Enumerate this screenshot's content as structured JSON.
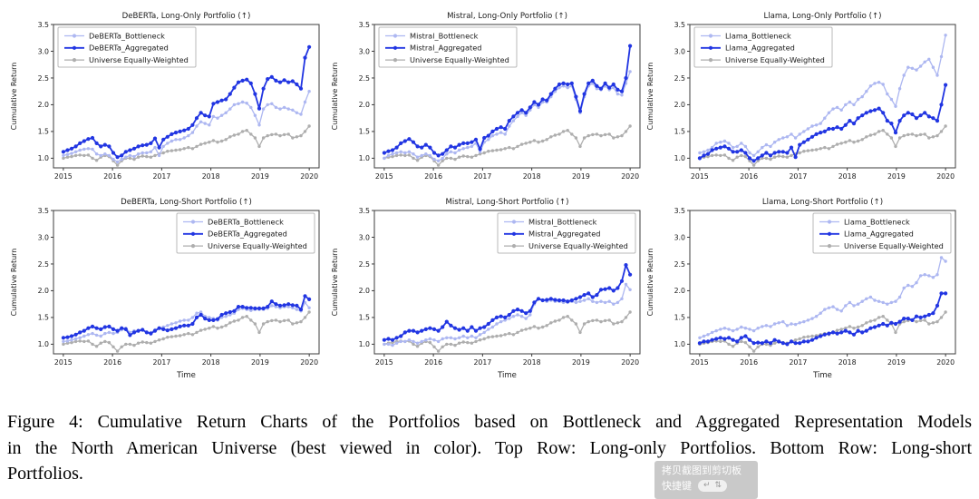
{
  "colors": {
    "bottleneck": "#adb7f1",
    "aggregated": "#2135e2",
    "universe": "#aeaeae",
    "frame": "#3c3c3c",
    "text": "#1a1a1a",
    "legend_border": "#b9b9b9"
  },
  "axes": {
    "ylabel": "Cumulative Return",
    "xlabel_bottom": "Time",
    "yticks": [
      1.0,
      1.5,
      2.0,
      2.5,
      3.0,
      3.5
    ],
    "xticks": [
      2015,
      2016,
      2017,
      2018,
      2019,
      2020
    ],
    "ylim": [
      0.82,
      3.5
    ],
    "xlim": [
      2014.8,
      2020.2
    ],
    "x_start": 2015,
    "x_end": 2020
  },
  "shared_series": {
    "universe_equally_weighted": [
      1.0,
      1.02,
      1.03,
      1.05,
      1.06,
      1.05,
      1.06,
      1.0,
      0.96,
      1.02,
      1.05,
      1.03,
      0.95,
      0.87,
      0.95,
      1.0,
      1.0,
      0.98,
      1.02,
      1.04,
      1.03,
      1.02,
      1.05,
      1.08,
      1.1,
      1.13,
      1.14,
      1.15,
      1.16,
      1.18,
      1.2,
      1.18,
      1.22,
      1.26,
      1.28,
      1.3,
      1.33,
      1.3,
      1.32,
      1.35,
      1.4,
      1.43,
      1.45,
      1.5,
      1.52,
      1.45,
      1.38,
      1.22,
      1.38,
      1.42,
      1.44,
      1.45,
      1.42,
      1.44,
      1.45,
      1.38,
      1.4,
      1.42,
      1.5,
      1.6
    ]
  },
  "chart_data": [
    {
      "type": "line",
      "title": "DeBERTa, Long-Only Portfolio (↑)",
      "legend_loc": "upper-left",
      "show_xlabel": false,
      "series": [
        {
          "name": "DeBERTa_Bottleneck",
          "color_key": "bottleneck",
          "values": [
            1.05,
            1.07,
            1.09,
            1.12,
            1.15,
            1.17,
            1.18,
            1.17,
            1.08,
            1.05,
            1.08,
            1.05,
            0.98,
            0.93,
            0.98,
            1.02,
            1.05,
            1.03,
            1.08,
            1.1,
            1.1,
            1.12,
            1.2,
            1.05,
            1.22,
            1.28,
            1.32,
            1.35,
            1.35,
            1.38,
            1.42,
            1.48,
            1.6,
            1.68,
            1.65,
            1.62,
            1.78,
            1.75,
            1.8,
            1.85,
            1.92,
            2.0,
            2.02,
            2.05,
            2.03,
            1.95,
            1.8,
            1.62,
            1.92,
            2.0,
            2.02,
            1.95,
            1.92,
            1.95,
            1.92,
            1.9,
            1.85,
            1.82,
            2.05,
            2.25
          ]
        },
        {
          "name": "DeBERTa_Aggregated",
          "color_key": "aggregated",
          "values": [
            1.12,
            1.15,
            1.18,
            1.22,
            1.28,
            1.32,
            1.36,
            1.38,
            1.28,
            1.22,
            1.25,
            1.22,
            1.1,
            1.02,
            1.05,
            1.12,
            1.15,
            1.18,
            1.22,
            1.24,
            1.25,
            1.28,
            1.37,
            1.2,
            1.35,
            1.4,
            1.45,
            1.48,
            1.5,
            1.52,
            1.55,
            1.62,
            1.75,
            1.85,
            1.8,
            1.78,
            2.02,
            2.05,
            2.08,
            2.1,
            2.2,
            2.32,
            2.42,
            2.45,
            2.47,
            2.4,
            2.2,
            1.93,
            2.3,
            2.48,
            2.52,
            2.45,
            2.42,
            2.46,
            2.42,
            2.44,
            2.38,
            2.3,
            2.88,
            3.08
          ]
        },
        {
          "name": "Universe Equally-Weighted",
          "color_key": "universe",
          "values_ref": "universe_equally_weighted"
        }
      ]
    },
    {
      "type": "line",
      "title": "Mistral, Long-Only Portfolio (↑)",
      "legend_loc": "upper-left",
      "show_xlabel": false,
      "series": [
        {
          "name": "Mistral_Bottleneck",
          "color_key": "bottleneck",
          "values": [
            1.0,
            1.05,
            1.08,
            1.1,
            1.12,
            1.1,
            1.12,
            1.08,
            1.02,
            1.05,
            1.08,
            1.05,
            0.98,
            0.95,
            1.0,
            1.08,
            1.12,
            1.1,
            1.15,
            1.18,
            1.2,
            1.22,
            1.28,
            1.12,
            1.3,
            1.35,
            1.42,
            1.45,
            1.48,
            1.45,
            1.6,
            1.7,
            1.78,
            1.85,
            1.8,
            1.9,
            2.0,
            1.95,
            2.05,
            2.05,
            2.15,
            2.25,
            2.32,
            2.35,
            2.32,
            2.35,
            2.1,
            1.85,
            2.15,
            2.35,
            2.4,
            2.3,
            2.28,
            2.35,
            2.28,
            2.32,
            2.2,
            2.18,
            2.4,
            2.62
          ]
        },
        {
          "name": "Mistral_Aggregated",
          "color_key": "aggregated",
          "values": [
            1.1,
            1.13,
            1.15,
            1.2,
            1.28,
            1.32,
            1.36,
            1.3,
            1.22,
            1.2,
            1.25,
            1.2,
            1.1,
            1.05,
            1.08,
            1.15,
            1.22,
            1.2,
            1.25,
            1.28,
            1.28,
            1.3,
            1.35,
            1.17,
            1.38,
            1.42,
            1.5,
            1.55,
            1.58,
            1.55,
            1.7,
            1.78,
            1.85,
            1.9,
            1.85,
            1.95,
            2.05,
            2.0,
            2.1,
            2.08,
            2.2,
            2.3,
            2.38,
            2.4,
            2.38,
            2.4,
            2.15,
            1.88,
            2.2,
            2.4,
            2.45,
            2.35,
            2.3,
            2.4,
            2.32,
            2.38,
            2.28,
            2.25,
            2.5,
            3.1
          ]
        },
        {
          "name": "Universe Equally-Weighted",
          "color_key": "universe",
          "values_ref": "universe_equally_weighted"
        }
      ]
    },
    {
      "type": "line",
      "title": "Llama, Long-Only Portfolio (↑)",
      "legend_loc": "upper-left",
      "show_xlabel": false,
      "series": [
        {
          "name": "Llama_Bottleneck",
          "color_key": "bottleneck",
          "values": [
            1.1,
            1.12,
            1.15,
            1.2,
            1.28,
            1.3,
            1.32,
            1.28,
            1.2,
            1.22,
            1.28,
            1.22,
            1.1,
            1.05,
            1.12,
            1.2,
            1.25,
            1.22,
            1.3,
            1.35,
            1.38,
            1.4,
            1.45,
            1.38,
            1.45,
            1.5,
            1.55,
            1.6,
            1.62,
            1.65,
            1.75,
            1.85,
            1.92,
            1.95,
            1.9,
            2.0,
            2.05,
            2.0,
            2.1,
            2.15,
            2.25,
            2.35,
            2.4,
            2.42,
            2.38,
            2.2,
            2.1,
            1.97,
            2.3,
            2.55,
            2.7,
            2.68,
            2.65,
            2.72,
            2.8,
            2.85,
            2.7,
            2.55,
            2.9,
            3.3
          ]
        },
        {
          "name": "Llama_Aggregated",
          "color_key": "aggregated",
          "values": [
            1.0,
            1.05,
            1.08,
            1.15,
            1.18,
            1.2,
            1.22,
            1.18,
            1.12,
            1.12,
            1.15,
            1.1,
            1.0,
            0.95,
            1.0,
            1.05,
            1.1,
            1.05,
            1.1,
            1.12,
            1.12,
            1.1,
            1.2,
            1.02,
            1.25,
            1.3,
            1.35,
            1.4,
            1.45,
            1.48,
            1.5,
            1.55,
            1.55,
            1.58,
            1.55,
            1.62,
            1.7,
            1.65,
            1.75,
            1.8,
            1.85,
            1.88,
            1.9,
            1.93,
            1.85,
            1.7,
            1.65,
            1.48,
            1.7,
            1.8,
            1.85,
            1.82,
            1.75,
            1.8,
            1.85,
            1.78,
            1.75,
            1.7,
            2.0,
            2.37
          ]
        },
        {
          "name": "Universe Equally-Weighted",
          "color_key": "universe",
          "values_ref": "universe_equally_weighted"
        }
      ]
    },
    {
      "type": "line",
      "title": "DeBERTa, Long-Short Portfolio (↑)",
      "legend_loc": "upper-right",
      "show_xlabel": true,
      "series": [
        {
          "name": "DeBERTa_Bottleneck",
          "color_key": "bottleneck",
          "values": [
            1.05,
            1.06,
            1.08,
            1.1,
            1.12,
            1.15,
            1.18,
            1.2,
            1.17,
            1.15,
            1.2,
            1.22,
            1.2,
            1.22,
            1.27,
            1.3,
            1.22,
            1.25,
            1.25,
            1.27,
            1.22,
            1.22,
            1.27,
            1.3,
            1.32,
            1.35,
            1.38,
            1.4,
            1.43,
            1.45,
            1.45,
            1.5,
            1.58,
            1.6,
            1.52,
            1.5,
            1.48,
            1.45,
            1.5,
            1.52,
            1.55,
            1.58,
            1.65,
            1.67,
            1.65,
            1.63,
            1.65,
            1.65,
            1.65,
            1.67,
            1.72,
            1.7,
            1.68,
            1.7,
            1.7,
            1.68,
            1.65,
            1.62,
            1.78,
            1.68
          ]
        },
        {
          "name": "DeBERTa_Aggregated",
          "color_key": "aggregated",
          "values": [
            1.12,
            1.13,
            1.15,
            1.18,
            1.22,
            1.25,
            1.3,
            1.33,
            1.3,
            1.28,
            1.32,
            1.33,
            1.28,
            1.25,
            1.3,
            1.28,
            1.17,
            1.22,
            1.25,
            1.27,
            1.22,
            1.2,
            1.25,
            1.3,
            1.28,
            1.26,
            1.28,
            1.3,
            1.33,
            1.35,
            1.35,
            1.38,
            1.5,
            1.55,
            1.48,
            1.45,
            1.45,
            1.47,
            1.55,
            1.58,
            1.6,
            1.62,
            1.7,
            1.7,
            1.68,
            1.68,
            1.67,
            1.67,
            1.67,
            1.7,
            1.8,
            1.75,
            1.72,
            1.73,
            1.75,
            1.73,
            1.72,
            1.65,
            1.9,
            1.84
          ]
        },
        {
          "name": "Universe Equally-Weighted",
          "color_key": "universe",
          "values_ref": "universe_equally_weighted"
        }
      ]
    },
    {
      "type": "line",
      "title": "Mistral, Long-Short Portfolio (↑)",
      "legend_loc": "upper-right",
      "show_xlabel": true,
      "series": [
        {
          "name": "Mistral_Bottleneck",
          "color_key": "bottleneck",
          "values": [
            1.0,
            1.0,
            0.98,
            1.02,
            1.05,
            1.05,
            1.08,
            1.05,
            1.02,
            1.05,
            1.08,
            1.1,
            1.08,
            1.05,
            1.1,
            1.12,
            1.12,
            1.1,
            1.12,
            1.15,
            1.12,
            1.15,
            1.12,
            1.18,
            1.22,
            1.28,
            1.32,
            1.38,
            1.42,
            1.45,
            1.48,
            1.52,
            1.55,
            1.52,
            1.48,
            1.55,
            1.75,
            1.85,
            1.82,
            1.8,
            1.82,
            1.8,
            1.8,
            1.78,
            1.78,
            1.8,
            1.78,
            1.8,
            1.82,
            1.85,
            1.8,
            1.78,
            1.8,
            1.78,
            1.8,
            1.75,
            1.78,
            1.85,
            2.12,
            2.02
          ]
        },
        {
          "name": "Mistral_Aggregated",
          "color_key": "aggregated",
          "values": [
            1.08,
            1.1,
            1.08,
            1.12,
            1.15,
            1.22,
            1.25,
            1.25,
            1.22,
            1.25,
            1.28,
            1.3,
            1.28,
            1.25,
            1.32,
            1.42,
            1.35,
            1.3,
            1.27,
            1.3,
            1.25,
            1.32,
            1.25,
            1.3,
            1.32,
            1.38,
            1.45,
            1.5,
            1.52,
            1.5,
            1.55,
            1.62,
            1.65,
            1.62,
            1.58,
            1.62,
            1.78,
            1.85,
            1.82,
            1.83,
            1.85,
            1.83,
            1.82,
            1.82,
            1.8,
            1.82,
            1.85,
            1.88,
            1.92,
            1.95,
            1.88,
            1.92,
            2.02,
            2.03,
            2.05,
            2.0,
            2.05,
            2.18,
            2.48,
            2.3
          ]
        },
        {
          "name": "Universe Equally-Weighted",
          "color_key": "universe",
          "values_ref": "universe_equally_weighted"
        }
      ]
    },
    {
      "type": "line",
      "title": "Llama, Long-Short Portfolio (↑)",
      "legend_loc": "upper-right",
      "show_xlabel": true,
      "series": [
        {
          "name": "Llama_Bottleneck",
          "color_key": "bottleneck",
          "values": [
            1.12,
            1.15,
            1.18,
            1.22,
            1.25,
            1.28,
            1.3,
            1.28,
            1.25,
            1.28,
            1.32,
            1.3,
            1.28,
            1.25,
            1.3,
            1.33,
            1.35,
            1.33,
            1.38,
            1.4,
            1.42,
            1.35,
            1.38,
            1.37,
            1.4,
            1.42,
            1.45,
            1.48,
            1.52,
            1.58,
            1.65,
            1.68,
            1.7,
            1.65,
            1.62,
            1.72,
            1.78,
            1.72,
            1.75,
            1.8,
            1.85,
            1.88,
            1.82,
            1.8,
            1.78,
            1.75,
            1.78,
            1.8,
            1.88,
            2.05,
            2.1,
            2.08,
            2.15,
            2.28,
            2.3,
            2.28,
            2.25,
            2.3,
            2.62,
            2.55
          ]
        },
        {
          "name": "Llama_Aggregated",
          "color_key": "aggregated",
          "values": [
            1.02,
            1.05,
            1.05,
            1.08,
            1.1,
            1.12,
            1.1,
            1.12,
            1.08,
            1.05,
            1.12,
            1.15,
            1.08,
            1.02,
            1.03,
            1.02,
            1.05,
            1.02,
            1.08,
            1.05,
            1.02,
            1.0,
            1.05,
            1.02,
            1.02,
            1.05,
            1.05,
            1.08,
            1.12,
            1.15,
            1.18,
            1.2,
            1.22,
            1.2,
            1.22,
            1.25,
            1.22,
            1.18,
            1.25,
            1.22,
            1.25,
            1.3,
            1.32,
            1.35,
            1.38,
            1.35,
            1.4,
            1.38,
            1.42,
            1.48,
            1.48,
            1.45,
            1.52,
            1.5,
            1.52,
            1.55,
            1.58,
            1.72,
            1.95,
            1.95
          ]
        },
        {
          "name": "Universe Equally-Weighted",
          "color_key": "universe",
          "values_ref": "universe_equally_weighted"
        }
      ]
    }
  ],
  "caption": {
    "lines": [
      "Figure 4: Cumulative Return Charts of the Portfolios based on Bottleneck and Aggregated Representation Models",
      "in the North American Universe (best viewed in color). Top Row: Long-only Portfolios. Bottom Row: Long-short",
      "Portfolios."
    ]
  },
  "overlay": {
    "copy_text": "拷贝截图到剪切板",
    "shortcut_label": "快捷键",
    "keys": [
      "↵",
      "⇅"
    ]
  }
}
